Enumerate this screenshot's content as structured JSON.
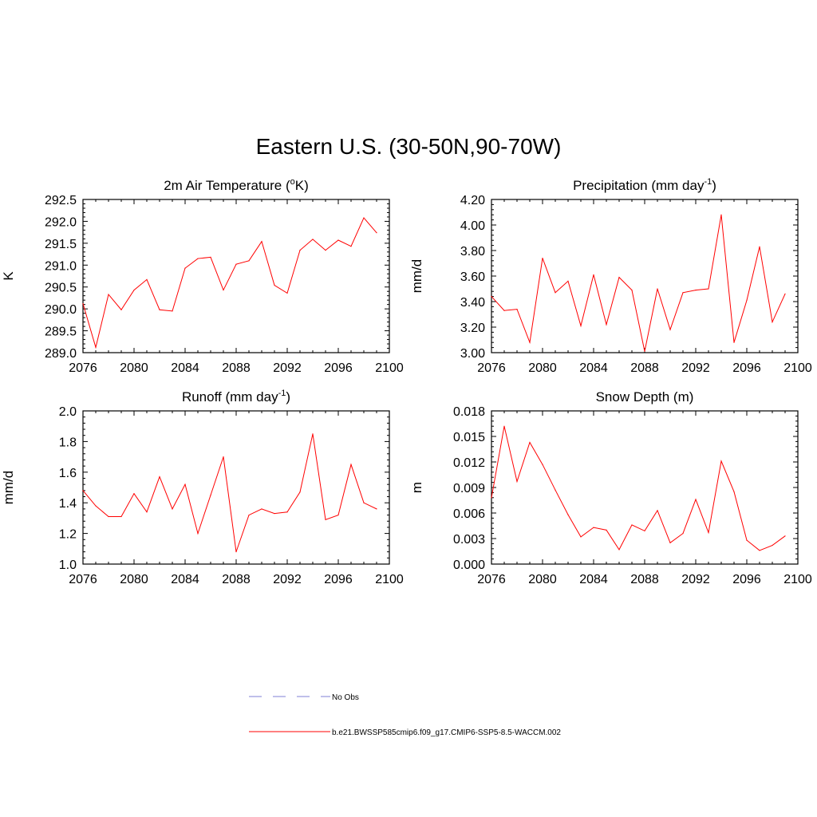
{
  "figure": {
    "title": "Eastern U.S. (30-50N,90-70W)"
  },
  "legend": {
    "items": [
      {
        "label": "No Obs",
        "style": "dashed",
        "color": "#9999dd"
      },
      {
        "label": "b.e21.BWSSP585cmip6.f09_g17.CMIP6-SSP5-8.5-WACCM.002",
        "style": "solid",
        "color": "#ff0000"
      }
    ]
  },
  "chart_data": [
    {
      "type": "line",
      "title": "2m Air Temperature (",
      "title_sup": "o",
      "title_after": "K)",
      "ylabel": "K",
      "xlim": [
        2076,
        2100
      ],
      "ylim": [
        289.0,
        292.5
      ],
      "xticks": [
        "2076",
        "2080",
        "2084",
        "2088",
        "2092",
        "2096",
        "2100"
      ],
      "yticks": [
        "289.0",
        "289.5",
        "290.0",
        "290.5",
        "291.0",
        "291.5",
        "292.0",
        "292.5"
      ],
      "series": [
        {
          "name": "b.e21.BWSSP585cmip6.f09_g17.CMIP6-SSP5-8.5-WACCM.002",
          "color": "#ff0000",
          "x": [
            2076,
            2077,
            2078,
            2079,
            2080,
            2081,
            2082,
            2083,
            2084,
            2085,
            2086,
            2087,
            2088,
            2089,
            2090,
            2091,
            2092,
            2093,
            2094,
            2095,
            2096,
            2097,
            2098,
            2099
          ],
          "values": [
            290.12,
            289.12,
            290.33,
            289.98,
            290.43,
            290.67,
            289.98,
            289.95,
            290.93,
            291.15,
            291.18,
            290.43,
            291.02,
            291.1,
            291.54,
            290.54,
            290.36,
            291.34,
            291.59,
            291.34,
            291.57,
            291.43,
            292.08,
            291.74
          ]
        }
      ]
    },
    {
      "type": "line",
      "title": "Precipitation (mm day",
      "title_sup": "-1",
      "title_after": ")",
      "ylabel": "mm/d",
      "xlim": [
        2076,
        2100
      ],
      "ylim": [
        3.0,
        4.2
      ],
      "xticks": [
        "2076",
        "2080",
        "2084",
        "2088",
        "2092",
        "2096",
        "2100"
      ],
      "yticks": [
        "3.00",
        "3.20",
        "3.40",
        "3.60",
        "3.80",
        "4.00",
        "4.20"
      ],
      "series": [
        {
          "name": "b.e21.BWSSP585cmip6.f09_g17.CMIP6-SSP5-8.5-WACCM.002",
          "color": "#ff0000",
          "x": [
            2076,
            2077,
            2078,
            2079,
            2080,
            2081,
            2082,
            2083,
            2084,
            2085,
            2086,
            2087,
            2088,
            2089,
            2090,
            2091,
            2092,
            2093,
            2094,
            2095,
            2096,
            2097,
            2098,
            2099
          ],
          "values": [
            3.44,
            3.33,
            3.34,
            3.08,
            3.74,
            3.47,
            3.56,
            3.21,
            3.61,
            3.22,
            3.59,
            3.49,
            3.01,
            3.5,
            3.18,
            3.47,
            3.49,
            3.5,
            4.08,
            3.08,
            3.41,
            3.83,
            3.24,
            3.46
          ]
        }
      ]
    },
    {
      "type": "line",
      "title": "Runoff (mm day",
      "title_sup": "-1",
      "title_after": ")",
      "ylabel": "mm/d",
      "xlim": [
        2076,
        2100
      ],
      "ylim": [
        1.0,
        2.0
      ],
      "xticks": [
        "2076",
        "2080",
        "2084",
        "2088",
        "2092",
        "2096",
        "2100"
      ],
      "yticks": [
        "1.0",
        "1.2",
        "1.4",
        "1.6",
        "1.8",
        "2.0"
      ],
      "series": [
        {
          "name": "b.e21.BWSSP585cmip6.f09_g17.CMIP6-SSP5-8.5-WACCM.002",
          "color": "#ff0000",
          "x": [
            2076,
            2077,
            2078,
            2079,
            2080,
            2081,
            2082,
            2083,
            2084,
            2085,
            2086,
            2087,
            2088,
            2089,
            2090,
            2091,
            2092,
            2093,
            2094,
            2095,
            2096,
            2097,
            2098,
            2099
          ],
          "values": [
            1.48,
            1.38,
            1.31,
            1.31,
            1.46,
            1.34,
            1.57,
            1.36,
            1.52,
            1.2,
            1.45,
            1.7,
            1.08,
            1.32,
            1.36,
            1.33,
            1.34,
            1.47,
            1.85,
            1.29,
            1.32,
            1.65,
            1.4,
            1.36
          ]
        }
      ]
    },
    {
      "type": "line",
      "title": "Snow Depth (m)",
      "title_sup": "",
      "title_after": "",
      "ylabel": "m",
      "xlim": [
        2076,
        2100
      ],
      "ylim": [
        0.0,
        0.018
      ],
      "xticks": [
        "2076",
        "2080",
        "2084",
        "2088",
        "2092",
        "2096",
        "2100"
      ],
      "yticks": [
        "0.000",
        "0.003",
        "0.006",
        "0.009",
        "0.012",
        "0.015",
        "0.018"
      ],
      "series": [
        {
          "name": "b.e21.BWSSP585cmip6.f09_g17.CMIP6-SSP5-8.5-WACCM.002",
          "color": "#ff0000",
          "x": [
            2076,
            2077,
            2078,
            2079,
            2080,
            2081,
            2082,
            2083,
            2084,
            2085,
            2086,
            2087,
            2088,
            2089,
            2090,
            2091,
            2092,
            2093,
            2094,
            2095,
            2096,
            2097,
            2098,
            2099
          ],
          "values": [
            0.0078,
            0.0162,
            0.0097,
            0.0143,
            0.0117,
            0.0087,
            0.0058,
            0.0032,
            0.0043,
            0.004,
            0.0017,
            0.0046,
            0.0039,
            0.0063,
            0.0025,
            0.0036,
            0.0076,
            0.0037,
            0.0121,
            0.0085,
            0.0028,
            0.0016,
            0.0022,
            0.0033
          ]
        }
      ]
    }
  ]
}
